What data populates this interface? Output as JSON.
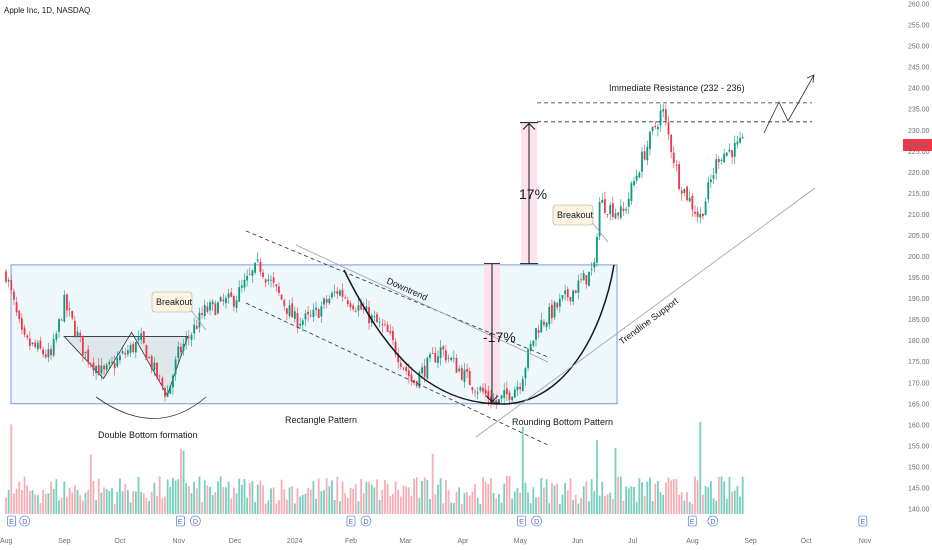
{
  "header": {
    "title": "Apple Inc, 1D, NASDAQ"
  },
  "price_tag": {
    "value": "226.49",
    "color": "#f23645"
  },
  "chart_data": {
    "type": "candlestick",
    "title": "Apple Inc, 1D, NASDAQ",
    "y_ticks": [
      "140.00",
      "145.00",
      "150.00",
      "155.00",
      "160.00",
      "165.00",
      "170.00",
      "175.00",
      "180.00",
      "185.00",
      "190.00",
      "195.00",
      "200.00",
      "205.00",
      "210.00",
      "215.00",
      "220.00",
      "225.00",
      "230.00",
      "235.00",
      "240.00",
      "245.00",
      "250.00",
      "255.00",
      "260.00"
    ],
    "ylim": [
      140,
      260
    ],
    "x_ticks": [
      "Aug",
      "Sep",
      "Oct",
      "Nov",
      "Dec",
      "2024",
      "Feb",
      "Mar",
      "Apr",
      "May",
      "Jun",
      "Jul",
      "Aug",
      "Sep",
      "Oct",
      "Nov"
    ],
    "price_path": [
      [
        "2023-08-01",
        196
      ],
      [
        "2023-08-10",
        180
      ],
      [
        "2023-08-25",
        176
      ],
      [
        "2023-09-01",
        189
      ],
      [
        "2023-09-12",
        177
      ],
      [
        "2023-09-22",
        172
      ],
      [
        "2023-10-01",
        176
      ],
      [
        "2023-10-12",
        180
      ],
      [
        "2023-10-20",
        172
      ],
      [
        "2023-10-26",
        167
      ],
      [
        "2023-11-01",
        177
      ],
      [
        "2023-11-15",
        187
      ],
      [
        "2023-12-01",
        190
      ],
      [
        "2023-12-14",
        198
      ],
      [
        "2024-01-02",
        185
      ],
      [
        "2024-01-10",
        185
      ],
      [
        "2024-01-25",
        192
      ],
      [
        "2024-02-05",
        188
      ],
      [
        "2024-02-20",
        182
      ],
      [
        "2024-03-05",
        170
      ],
      [
        "2024-03-20",
        178
      ],
      [
        "2024-04-05",
        170
      ],
      [
        "2024-04-19",
        165
      ],
      [
        "2024-05-01",
        170
      ],
      [
        "2024-05-10",
        183
      ],
      [
        "2024-05-25",
        190
      ],
      [
        "2024-06-10",
        197
      ],
      [
        "2024-06-12",
        213
      ],
      [
        "2024-06-25",
        210
      ],
      [
        "2024-07-05",
        223
      ],
      [
        "2024-07-16",
        235
      ],
      [
        "2024-07-25",
        218
      ],
      [
        "2024-08-05",
        209
      ],
      [
        "2024-08-15",
        224
      ],
      [
        "2024-08-28",
        226.49
      ]
    ],
    "volume_spikes": [
      "2023-08-04",
      "2023-09-15",
      "2023-11-03",
      "2024-03-15",
      "2024-05-03",
      "2024-06-11",
      "2024-06-21",
      "2024-08-05"
    ],
    "event_markers": [
      "E",
      "D"
    ],
    "annotations": {
      "double_bottom": "Double Bottom formation",
      "breakout": "Breakout",
      "rectangle": "Rectangle Pattern",
      "downtrend": "Downtrend",
      "pct_small": "-17%",
      "pct_big": "17%",
      "rounding": "Rounding Bottom Pattern",
      "trendline": "Trendline Support",
      "resistance": "Immediate Resistance (232 - 236)"
    },
    "levels": {
      "rect_top": 198,
      "rect_bottom": 165,
      "resistance_low": 232,
      "resistance_high": 236.5
    },
    "grid": false,
    "axis_side": "right"
  }
}
